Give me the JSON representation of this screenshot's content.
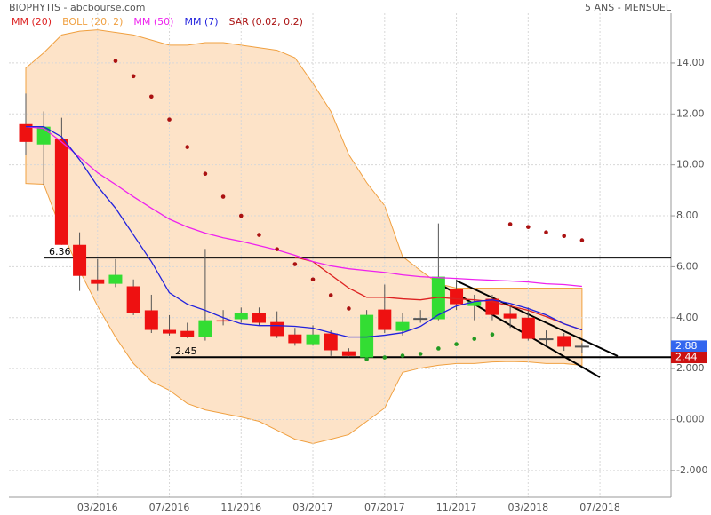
{
  "header": {
    "title": "BIOPHYTIS - abcbourse.com",
    "period": "5 ANS - MENSUEL"
  },
  "chart_data": {
    "type": "candlestick",
    "categories": [
      null,
      null,
      null,
      null,
      "03/2016",
      null,
      null,
      null,
      "07/2016",
      null,
      null,
      null,
      "11/2016",
      null,
      null,
      null,
      "03/2017",
      null,
      null,
      null,
      "07/2017",
      null,
      null,
      null,
      "11/2017",
      null,
      null,
      null,
      "03/2018",
      null,
      null,
      null,
      "07/2018"
    ],
    "ylim": [
      -3.05,
      15.95
    ],
    "yticks": [
      {
        "value": 14,
        "label": "14.00"
      },
      {
        "value": 12,
        "label": "12.00"
      },
      {
        "value": 10,
        "label": "10.00"
      },
      {
        "value": 8,
        "label": "8.00"
      },
      {
        "value": 6,
        "label": "6.00"
      },
      {
        "value": 4,
        "label": "4.00"
      },
      {
        "value": 2,
        "label": "2.000"
      },
      {
        "value": 0,
        "label": "0.000"
      },
      {
        "value": -2,
        "label": "-2.000"
      }
    ],
    "grid": true,
    "candles": {
      "up_color": "#33dd33",
      "down_color": "#ee1111",
      "open": [
        11.6,
        10.8,
        11.0,
        6.86,
        5.5,
        5.33,
        5.23,
        4.29,
        3.52,
        3.48,
        3.24,
        3.9,
        3.94,
        4.2,
        3.83,
        3.34,
        2.96,
        3.38,
        2.68,
        2.44,
        4.32,
        3.48,
        3.94,
        3.94,
        5.12,
        4.46,
        4.74,
        4.15,
        4.0,
        3.17,
        3.28,
        2.86,
        null
      ],
      "high": [
        12.8,
        12.1,
        11.85,
        7.35,
        6.3,
        6.3,
        5.5,
        4.9,
        4.1,
        3.8,
        6.7,
        4.3,
        4.4,
        4.4,
        4.25,
        3.6,
        3.7,
        3.5,
        2.8,
        4.3,
        5.3,
        4.2,
        4.3,
        7.7,
        5.5,
        4.9,
        4.9,
        4.5,
        4.4,
        3.5,
        3.4,
        3.0,
        null
      ],
      "low": [
        10.4,
        9.2,
        6.86,
        5.05,
        5.05,
        5.2,
        4.1,
        3.4,
        3.3,
        3.2,
        3.1,
        3.7,
        3.8,
        3.7,
        3.2,
        2.9,
        2.9,
        2.5,
        2.45,
        2.44,
        3.4,
        3.3,
        3.8,
        3.9,
        4.3,
        3.9,
        3.9,
        3.6,
        3.1,
        2.9,
        2.7,
        2.6,
        null
      ],
      "close": [
        10.9,
        11.5,
        6.86,
        5.64,
        5.33,
        5.68,
        4.18,
        3.52,
        3.38,
        3.24,
        3.9,
        3.85,
        4.18,
        3.8,
        3.28,
        3.0,
        3.34,
        2.72,
        2.5,
        4.11,
        3.52,
        3.83,
        3.97,
        5.61,
        4.53,
        4.63,
        4.11,
        3.97,
        3.17,
        3.15,
        2.86,
        2.88,
        null
      ]
    },
    "series": [
      {
        "name": "MM (20)",
        "color": "#dd2222",
        "style": "line",
        "values": [
          null,
          null,
          null,
          null,
          null,
          null,
          null,
          null,
          null,
          null,
          null,
          null,
          null,
          null,
          null,
          6.38,
          6.2,
          5.68,
          5.16,
          4.8,
          4.8,
          4.74,
          4.7,
          4.8,
          4.74,
          4.7,
          4.63,
          4.46,
          4.29,
          4.04,
          3.76,
          3.52,
          null
        ]
      },
      {
        "name": "BOLL (20, 2)",
        "color": "#f0a040",
        "fill": "#fde3c8",
        "style": "band",
        "upper": [
          13.8,
          14.4,
          15.1,
          15.25,
          15.3,
          15.2,
          15.1,
          14.9,
          14.7,
          14.7,
          14.8,
          14.8,
          14.7,
          14.6,
          14.5,
          14.2,
          13.2,
          12.1,
          10.4,
          9.3,
          8.4,
          6.4,
          5.85,
          5.33,
          5.16,
          5.16,
          5.16,
          5.16,
          5.16,
          5.16,
          5.16,
          5.16,
          null
        ],
        "lower": [
          9.27,
          9.24,
          7.4,
          5.85,
          4.46,
          3.24,
          2.2,
          1.5,
          1.15,
          0.63,
          0.38,
          0.24,
          0.1,
          -0.07,
          -0.42,
          -0.77,
          -0.94,
          -0.77,
          -0.59,
          -0.07,
          0.45,
          1.85,
          2.02,
          2.13,
          2.2,
          2.2,
          2.26,
          2.28,
          2.26,
          2.2,
          2.2,
          2.13,
          null
        ]
      },
      {
        "name": "MM (50)",
        "color": "#ee22ee",
        "style": "line",
        "values": [
          11.5,
          11.43,
          10.9,
          10.3,
          9.69,
          9.23,
          8.75,
          8.3,
          7.87,
          7.56,
          7.32,
          7.14,
          7.0,
          6.83,
          6.66,
          6.45,
          6.2,
          6.03,
          5.92,
          5.85,
          5.78,
          5.68,
          5.61,
          5.57,
          5.54,
          5.5,
          5.47,
          5.44,
          5.4,
          5.33,
          5.3,
          5.23,
          null
        ]
      },
      {
        "name": "MM (7)",
        "color": "#2222dd",
        "style": "line",
        "values": [
          11.5,
          11.5,
          11.1,
          10.2,
          9.16,
          8.3,
          7.25,
          6.2,
          4.98,
          4.53,
          4.29,
          4.0,
          3.76,
          3.69,
          3.69,
          3.66,
          3.59,
          3.41,
          3.24,
          3.24,
          3.31,
          3.41,
          3.66,
          4.11,
          4.46,
          4.63,
          4.7,
          4.56,
          4.36,
          4.11,
          3.76,
          3.52,
          null
        ]
      },
      {
        "name": "SAR (0.02, 0.2)",
        "color": "#aa1111",
        "up_color": "#229922",
        "style": "dots",
        "values": [
          null,
          null,
          null,
          null,
          null,
          14.08,
          13.48,
          12.68,
          11.78,
          10.7,
          9.65,
          8.75,
          8.0,
          7.25,
          6.69,
          6.1,
          5.5,
          4.88,
          4.36,
          2.37,
          2.44,
          2.51,
          2.58,
          2.79,
          2.96,
          3.17,
          3.34,
          7.67,
          7.56,
          7.35,
          7.21,
          7.04,
          null
        ]
      }
    ],
    "levels": [
      6.36,
      2.45
    ],
    "price_tags": [
      {
        "value": 2.88,
        "color": "#3366ee"
      },
      {
        "value": 2.44,
        "color": "#cc1111"
      }
    ]
  }
}
